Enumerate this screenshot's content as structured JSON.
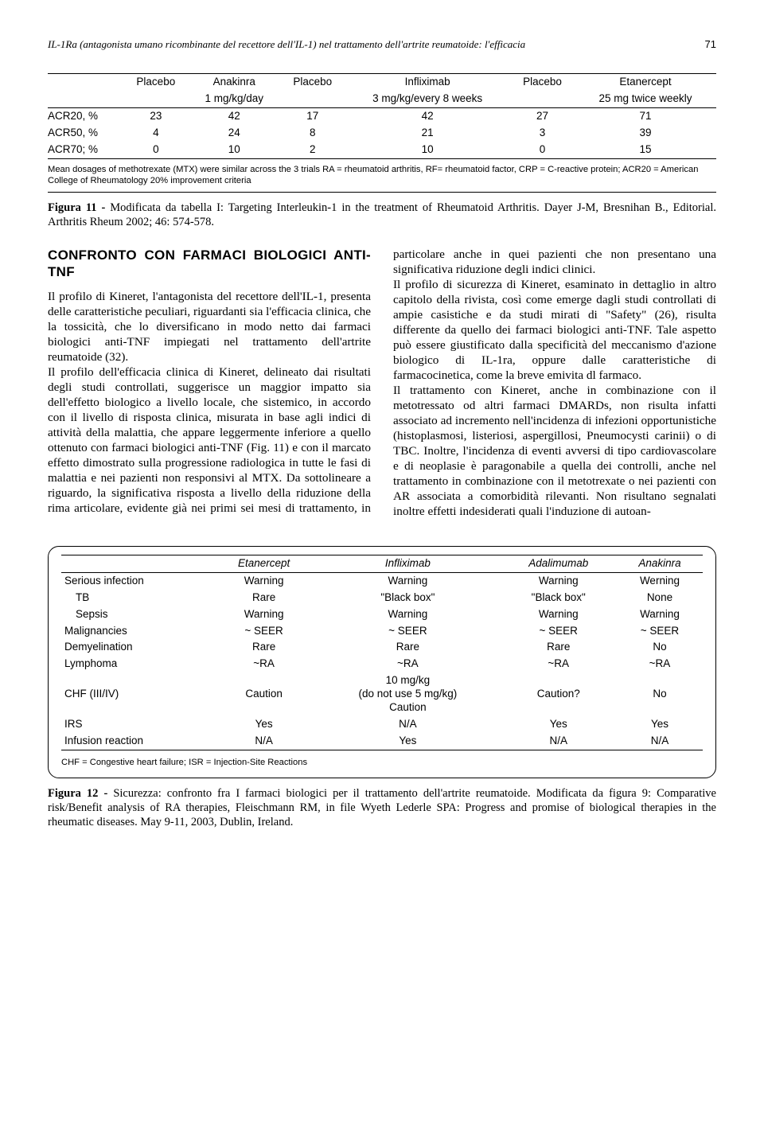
{
  "header": {
    "running_title": "IL-1Ra (antagonista umano ricombinante del recettore dell'IL-1) nel trattamento dell'artrite reumatoide: l'efficacia",
    "page_number": "71"
  },
  "table1": {
    "cols": [
      {
        "top": "",
        "bottom": ""
      },
      {
        "top": "Placebo",
        "bottom": ""
      },
      {
        "top": "Anakinra",
        "bottom": "1 mg/kg/day"
      },
      {
        "top": "Placebo",
        "bottom": ""
      },
      {
        "top": "Infliximab",
        "bottom": "3 mg/kg/every 8 weeks"
      },
      {
        "top": "Placebo",
        "bottom": ""
      },
      {
        "top": "Etanercept",
        "bottom": "25 mg twice weekly"
      }
    ],
    "rows": [
      {
        "label": "ACR20, %",
        "v": [
          "23",
          "42",
          "17",
          "42",
          "27",
          "71"
        ]
      },
      {
        "label": "ACR50, %",
        "v": [
          "4",
          "24",
          "8",
          "21",
          "3",
          "39"
        ]
      },
      {
        "label": "ACR70; %",
        "v": [
          "0",
          "10",
          "2",
          "10",
          "0",
          "15"
        ]
      }
    ],
    "footnote": "Mean dosages of methotrexate (MTX) were similar across the 3 trials RA = rheumatoid arthritis, RF= rheumatoid factor, CRP = C-reactive protein; ACR20 = American College of Rheumatology 20% improvement criteria"
  },
  "caption1": {
    "label": "Figura 11 - ",
    "text": "Modificata da tabella I: Targeting Interleukin-1 in the treatment of Rheumatoid Arthritis. Dayer J-M, Bresnihan B., Editorial. Arthritis Rheum 2002; 46: 574-578."
  },
  "body": {
    "heading": "CONFRONTO CON FARMACI BIOLOGICI ANTI-TNF",
    "p1": "Il profilo di Kineret, l'antagonista del recettore dell'IL-1, presenta delle caratteristiche peculiari, riguardanti sia l'efficacia clinica, che la tossicità, che lo diversificano in modo netto dai farmaci biologici anti-TNF impiegati nel trattamento dell'artrite reumatoide (32).",
    "p2": "Il profilo dell'efficacia clinica di Kineret, delineato dai risultati degli studi controllati, suggerisce un maggior impatto sia dell'effetto biologico a livello locale, che sistemico, in accordo con il livello di risposta clinica, misurata in base agli indici di attività della malattia, che appare leggermente inferiore a quello ottenuto con farmaci biologici anti-TNF (Fig. 11) e con il marcato effetto dimostrato sulla progressione radiologica in tutte le fasi di malattia e nei pazienti non responsivi al MTX. Da sottolineare a riguardo, la significativa risposta a livello della riduzione della rima articolare, evidente già nei primi sei mesi di trattamento, in particolare anche in quei pazienti che non presentano una significativa riduzione degli indici clinici.",
    "p3": "Il profilo di sicurezza di Kineret, esaminato in dettaglio in altro capitolo della rivista, così come emerge dagli studi controllati di ampie casistiche e da studi mirati di \"Safety\" (26), risulta differente da quello dei farmaci biologici anti-TNF. Tale aspetto può essere giustificato dalla specificità del meccanismo d'azione biologico di IL-1ra, oppure dalle caratteristiche di farmacocinetica, come la breve emivita dl farmaco.",
    "p4": "Il trattamento con Kineret, anche in combinazione con il metotressato od altri farmaci DMARDs, non risulta infatti associato ad incremento nell'incidenza di infezioni opportunistiche (histoplasmosi, listeriosi, aspergillosi, Pneumocysti carinii) o di TBC. Inoltre, l'incidenza di eventi avversi di tipo cardiovascolare e di neoplasie è paragonabile a quella dei controlli, anche nel trattamento in combinazione con il metotrexate o nei pazienti con AR associata a comorbidità rilevanti. Non risultano segnalati inoltre effetti indesiderati quali l'induzione di autoan-"
  },
  "table2": {
    "headers": [
      "",
      "Etanercept",
      "Infliximab",
      "Adalimumab",
      "Anakinra"
    ],
    "rows": [
      [
        "Serious infection",
        "Warning",
        "Warning",
        "Warning",
        "Werning"
      ],
      [
        "  TB",
        "Rare",
        "\"Black box\"",
        "\"Black box\"",
        "None"
      ],
      [
        "  Sepsis",
        "Warning",
        "Warning",
        "Warning",
        "Warning"
      ],
      [
        "Malignancies",
        "~ SEER",
        "~ SEER",
        "~ SEER",
        "~ SEER"
      ],
      [
        "Demyelination",
        "Rare",
        "Rare",
        "Rare",
        "No"
      ],
      [
        "Lymphoma",
        "~RA",
        "~RA",
        "~RA",
        "~RA"
      ],
      [
        "CHF (III/IV)",
        "Caution",
        "10 mg/kg\n(do not use 5 mg/kg)\nCaution",
        "Caution?",
        "No"
      ],
      [
        "IRS",
        "Yes",
        "N/A",
        "Yes",
        "Yes"
      ],
      [
        "Infusion reaction",
        "N/A",
        "Yes",
        "N/A",
        "N/A"
      ]
    ],
    "footnote": "CHF = Congestive heart failure; ISR = Injection-Site Reactions"
  },
  "caption2": {
    "label": "Figura 12 - ",
    "text": "Sicurezza: confronto fra I farmaci biologici per il trattamento dell'artrite reumatoide. Modificata da figura 9: Comparative risk/Benefit analysis of RA therapies, Fleischmann RM, in file Wyeth Lederle SPA: Progress and promise of biological therapies in the rheumatic diseases. May 9-11, 2003, Dublin, Ireland."
  }
}
